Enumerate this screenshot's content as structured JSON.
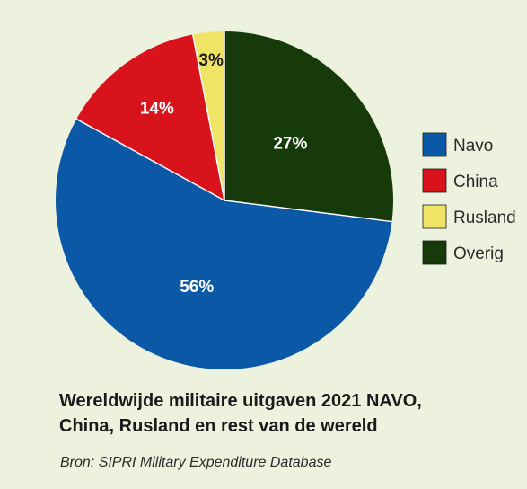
{
  "chart_data": {
    "type": "pie",
    "title_lines": [
      "Wereldwijde militaire uitgaven 2021 NAVO,",
      "China, Rusland en rest van de wereld"
    ],
    "source": "Bron: SIPRI Military Expenditure Database",
    "slices": [
      {
        "name": "Navo",
        "value": 56,
        "label": "56%",
        "color": "#0b59a6",
        "label_color": "#ffffff"
      },
      {
        "name": "China",
        "value": 14,
        "label": "14%",
        "color": "#d9131b",
        "label_color": "#ffffff"
      },
      {
        "name": "Rusland",
        "value": 3,
        "label": "3%",
        "color": "#f0e467",
        "label_color": "#1a1a1a"
      },
      {
        "name": "Overig",
        "value": 27,
        "label": "27%",
        "color": "#173a0a",
        "label_color": "#ffffff"
      }
    ],
    "legend": {
      "position": "right"
    },
    "start_angle": "12 o'clock",
    "direction": "counterclockwise from 12 o'clock: Rusland, China, Navo; Overig clockwise from 12 o'clock"
  }
}
